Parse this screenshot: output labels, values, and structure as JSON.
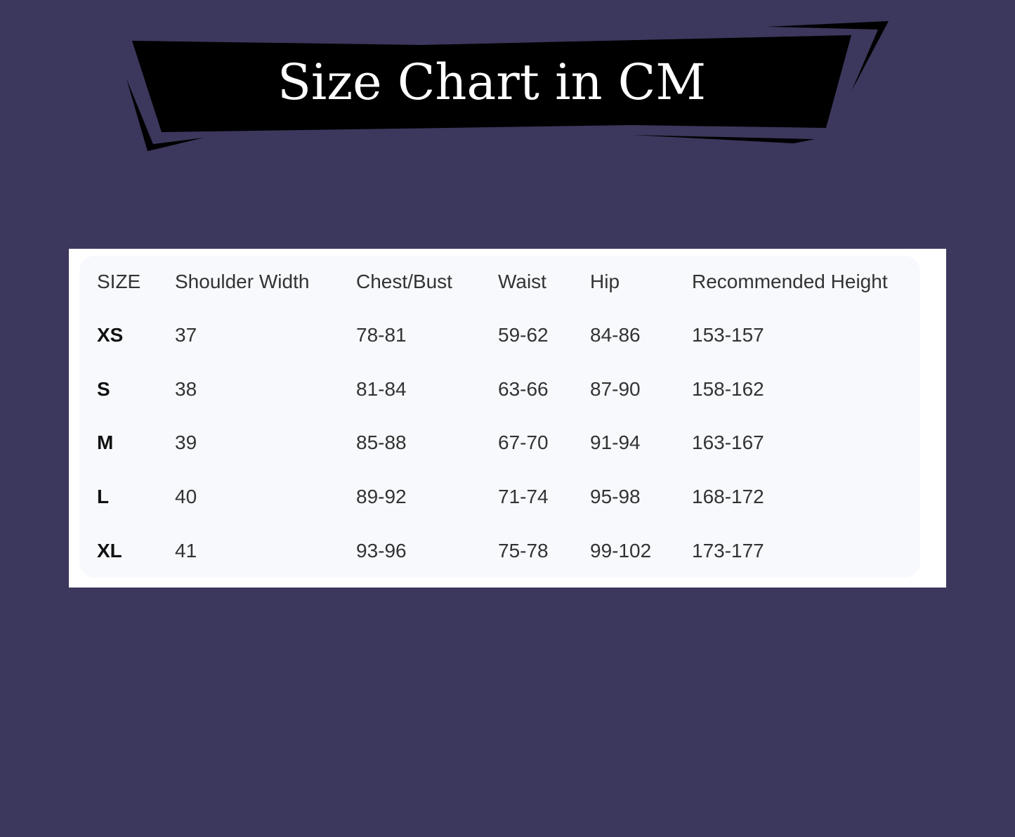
{
  "title": "Size Chart in CM",
  "colors": {
    "background": "#3c375c",
    "banner": "#000000",
    "panel": "#f7f9fd"
  },
  "table": {
    "headers": [
      "SIZE",
      "Shoulder Width",
      "Chest/Bust",
      "Waist",
      "Hip",
      "Recommended Height"
    ],
    "rows": [
      [
        "XS",
        "37",
        "78-81",
        "59-62",
        "84-86",
        "153-157"
      ],
      [
        "S",
        "38",
        "81-84",
        "63-66",
        "87-90",
        "158-162"
      ],
      [
        "M",
        "39",
        "85-88",
        "67-70",
        "91-94",
        "163-167"
      ],
      [
        "L",
        "40",
        "89-92",
        "71-74",
        "95-98",
        "168-172"
      ],
      [
        "XL",
        "41",
        "93-96",
        "75-78",
        "99-102",
        "173-177"
      ]
    ]
  }
}
